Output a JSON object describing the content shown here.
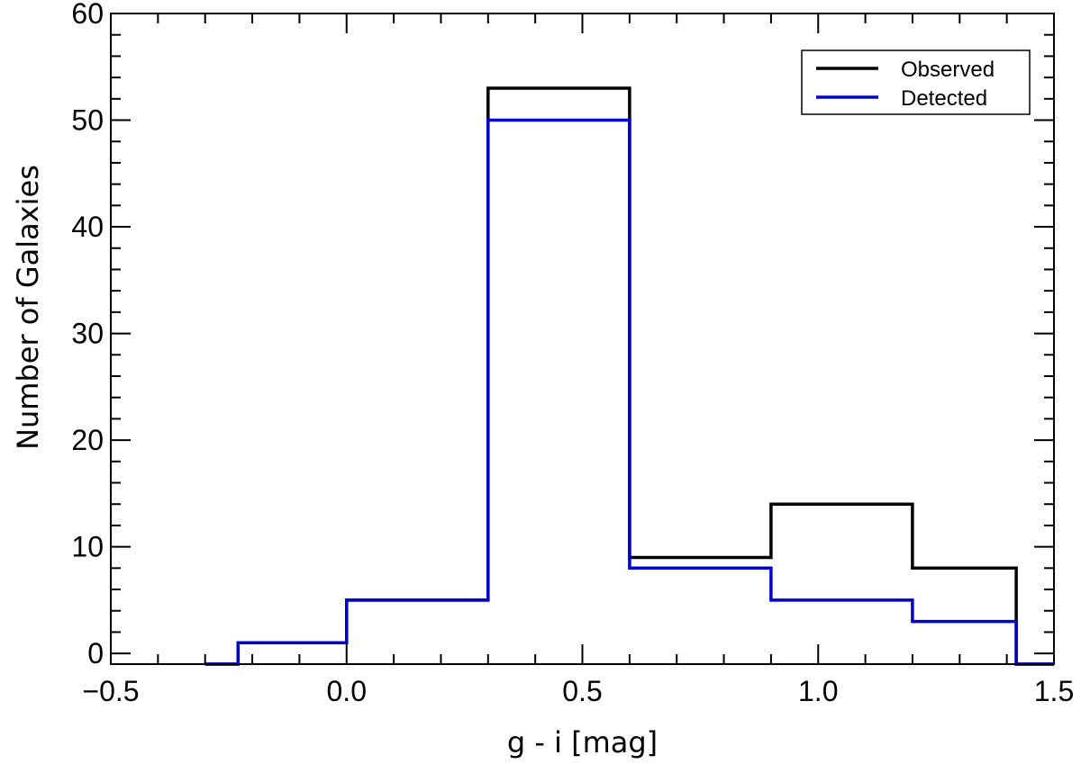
{
  "chart_data": {
    "type": "histogram-step",
    "xlabel": "g - i [mag]",
    "ylabel": "Number of Galaxies",
    "xlim": [
      -0.5,
      1.5
    ],
    "ylim": [
      -1,
      60
    ],
    "x_ticks": [
      -0.5,
      0.0,
      0.5,
      1.0,
      1.5
    ],
    "x_tick_labels": [
      "−0.5",
      "0.0",
      "0.5",
      "1.0",
      "1.5"
    ],
    "y_ticks": [
      0,
      10,
      20,
      30,
      40,
      50,
      60
    ],
    "y_tick_labels": [
      "0",
      "10",
      "20",
      "30",
      "40",
      "50",
      "60"
    ],
    "legend_position": "top-right",
    "series": [
      {
        "name": "Observed",
        "color": "#000000",
        "points": [
          [
            -0.3,
            -1
          ],
          [
            -0.23,
            -1
          ],
          [
            -0.23,
            1
          ],
          [
            0.0,
            1
          ],
          [
            0.0,
            5
          ],
          [
            0.3,
            5
          ],
          [
            0.3,
            53
          ],
          [
            0.6,
            53
          ],
          [
            0.6,
            9
          ],
          [
            0.9,
            9
          ],
          [
            0.9,
            14
          ],
          [
            1.2,
            14
          ],
          [
            1.2,
            8
          ],
          [
            1.42,
            8
          ],
          [
            1.42,
            -1
          ],
          [
            1.5,
            -1
          ]
        ]
      },
      {
        "name": "Detected",
        "color": "#0000cc",
        "points": [
          [
            -0.3,
            -1
          ],
          [
            -0.23,
            -1
          ],
          [
            -0.23,
            1
          ],
          [
            0.0,
            1
          ],
          [
            0.0,
            5
          ],
          [
            0.3,
            5
          ],
          [
            0.3,
            50
          ],
          [
            0.6,
            50
          ],
          [
            0.6,
            8
          ],
          [
            0.9,
            8
          ],
          [
            0.9,
            5
          ],
          [
            1.2,
            5
          ],
          [
            1.2,
            3
          ],
          [
            1.42,
            3
          ],
          [
            1.42,
            -1
          ],
          [
            1.5,
            -1
          ]
        ]
      }
    ]
  }
}
